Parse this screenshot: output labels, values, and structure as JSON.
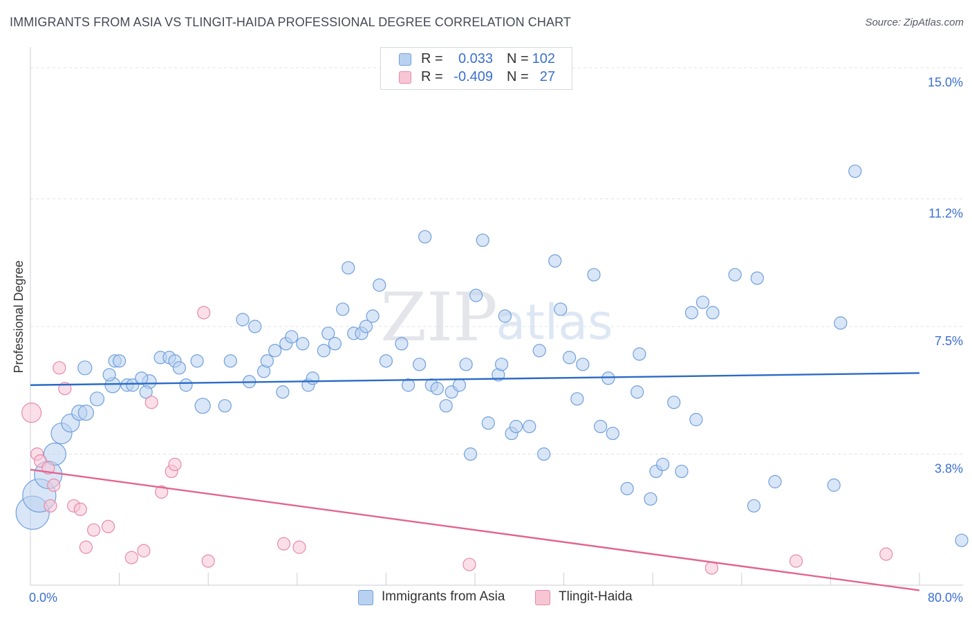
{
  "title": "IMMIGRANTS FROM ASIA VS TLINGIT-HAIDA PROFESSIONAL DEGREE CORRELATION CHART",
  "source": "Source: ZipAtlas.com",
  "watermark": {
    "zip": "ZIP",
    "atlas": "atlas"
  },
  "legend_top": [
    {
      "r_label": "R =",
      "r_value": "0.033",
      "n_label": "N =",
      "n_value": "102"
    },
    {
      "r_label": "R =",
      "r_value": "-0.409",
      "n_label": "N =",
      "n_value": "27"
    }
  ],
  "colors": {
    "blue_fill": "#b9d1f0",
    "blue_stroke": "#6f9fda",
    "blue_line": "#2a6ac8",
    "pink_fill": "#f8c5d5",
    "pink_stroke": "#e58aa8",
    "pink_line": "#e2648f",
    "axis_text": "#3a6fcf",
    "grid": "#dde1e6"
  },
  "chart_data": {
    "type": "scatter",
    "title": "IMMIGRANTS FROM ASIA VS TLINGIT-HAIDA PROFESSIONAL DEGREE CORRELATION CHART",
    "xlabel": "",
    "ylabel": "Professional Degree",
    "xlim": [
      0,
      80
    ],
    "ylim": [
      0,
      15.4
    ],
    "x_tick_labels": [
      {
        "value": 0,
        "label": "0.0%"
      },
      {
        "value": 80,
        "label": "80.0%"
      }
    ],
    "y_tick_labels": [
      {
        "value": 3.8,
        "label": "3.8%"
      },
      {
        "value": 7.5,
        "label": "7.5%"
      },
      {
        "value": 11.2,
        "label": "11.2%"
      },
      {
        "value": 15.0,
        "label": "15.0%"
      }
    ],
    "series": [
      {
        "name": "Immigrants from Asia",
        "color": "#6f9fda",
        "trend": {
          "x0": 0,
          "y0": 5.8,
          "x1": 80,
          "y1": 6.15
        },
        "points": [
          [
            0.2,
            2.1,
            24
          ],
          [
            0.8,
            2.6,
            24
          ],
          [
            1.6,
            3.2,
            20
          ],
          [
            2.2,
            3.8,
            16
          ],
          [
            2.8,
            4.4,
            15
          ],
          [
            3.6,
            4.7,
            13
          ],
          [
            4.4,
            5.0,
            11
          ],
          [
            5.0,
            5.0,
            11
          ],
          [
            7.4,
            5.8,
            11
          ],
          [
            10.7,
            5.9,
            10
          ],
          [
            15.5,
            5.2,
            11
          ],
          [
            4.9,
            6.3,
            10
          ],
          [
            6.0,
            5.4,
            10
          ],
          [
            7.1,
            6.1,
            9
          ],
          [
            7.6,
            6.5,
            9
          ],
          [
            8.0,
            6.5,
            9
          ],
          [
            8.7,
            5.8,
            9
          ],
          [
            9.2,
            5.8,
            9
          ],
          [
            10.4,
            5.6,
            9
          ],
          [
            10.0,
            6.0,
            9
          ],
          [
            11.7,
            6.6,
            9
          ],
          [
            12.5,
            6.6,
            9
          ],
          [
            13.0,
            6.5,
            9
          ],
          [
            13.4,
            6.3,
            9
          ],
          [
            14.0,
            5.8,
            9
          ],
          [
            15.0,
            6.5,
            9
          ],
          [
            17.5,
            5.2,
            9
          ],
          [
            18.0,
            6.5,
            9
          ],
          [
            19.1,
            7.7,
            9
          ],
          [
            19.7,
            5.9,
            9
          ],
          [
            20.2,
            7.5,
            9
          ],
          [
            21.0,
            6.2,
            9
          ],
          [
            21.3,
            6.5,
            9
          ],
          [
            22.0,
            6.8,
            9
          ],
          [
            22.7,
            5.6,
            9
          ],
          [
            23.0,
            7.0,
            9
          ],
          [
            23.5,
            7.2,
            9
          ],
          [
            24.5,
            7.0,
            9
          ],
          [
            25.0,
            5.8,
            9
          ],
          [
            25.4,
            6.0,
            9
          ],
          [
            26.4,
            6.8,
            9
          ],
          [
            26.8,
            7.3,
            9
          ],
          [
            27.4,
            7.0,
            9
          ],
          [
            28.1,
            8.0,
            9
          ],
          [
            28.6,
            9.2,
            9
          ],
          [
            29.1,
            7.3,
            9
          ],
          [
            29.8,
            7.3,
            9
          ],
          [
            30.2,
            7.5,
            9
          ],
          [
            30.8,
            7.8,
            9
          ],
          [
            31.4,
            8.7,
            9
          ],
          [
            32.0,
            6.5,
            9
          ],
          [
            33.4,
            7.0,
            9
          ],
          [
            34.0,
            5.8,
            9
          ],
          [
            35.0,
            6.4,
            9
          ],
          [
            35.5,
            10.1,
            9
          ],
          [
            36.1,
            5.8,
            9
          ],
          [
            36.6,
            5.7,
            9
          ],
          [
            37.4,
            5.2,
            9
          ],
          [
            37.9,
            5.6,
            9
          ],
          [
            38.6,
            5.8,
            9
          ],
          [
            39.2,
            6.4,
            9
          ],
          [
            39.6,
            3.8,
            9
          ],
          [
            40.1,
            8.4,
            9
          ],
          [
            40.7,
            10.0,
            9
          ],
          [
            41.2,
            4.7,
            9
          ],
          [
            42.1,
            6.1,
            9
          ],
          [
            42.4,
            6.4,
            9
          ],
          [
            42.7,
            7.8,
            9
          ],
          [
            43.3,
            4.4,
            9
          ],
          [
            43.7,
            4.6,
            9
          ],
          [
            44.9,
            4.6,
            9
          ],
          [
            45.8,
            6.8,
            9
          ],
          [
            46.2,
            3.8,
            9
          ],
          [
            47.2,
            9.4,
            9
          ],
          [
            47.7,
            8.0,
            9
          ],
          [
            48.5,
            6.6,
            9
          ],
          [
            49.2,
            5.4,
            9
          ],
          [
            49.7,
            6.4,
            9
          ],
          [
            50.7,
            9.0,
            9
          ],
          [
            51.3,
            4.6,
            9
          ],
          [
            52.0,
            6.0,
            9
          ],
          [
            52.4,
            4.4,
            9
          ],
          [
            53.7,
            2.8,
            9
          ],
          [
            54.6,
            5.6,
            9
          ],
          [
            54.8,
            6.7,
            9
          ],
          [
            55.8,
            2.5,
            9
          ],
          [
            56.3,
            3.3,
            9
          ],
          [
            56.9,
            3.5,
            9
          ],
          [
            57.9,
            5.3,
            9
          ],
          [
            58.6,
            3.3,
            9
          ],
          [
            59.5,
            7.9,
            9
          ],
          [
            59.9,
            4.8,
            9
          ],
          [
            60.5,
            8.2,
            9
          ],
          [
            61.4,
            7.9,
            9
          ],
          [
            63.4,
            9.0,
            9
          ],
          [
            65.1,
            2.3,
            9
          ],
          [
            65.4,
            8.9,
            9
          ],
          [
            67.0,
            3.0,
            9
          ],
          [
            72.3,
            2.9,
            9
          ],
          [
            72.9,
            7.6,
            9
          ],
          [
            74.2,
            12.0,
            9
          ],
          [
            83.8,
            1.3,
            9
          ]
        ]
      },
      {
        "name": "Tlingit-Haida",
        "color": "#e58aa8",
        "trend": {
          "x0": 0,
          "y0": 3.35,
          "x1": 80,
          "y1": -0.15
        },
        "points": [
          [
            0.1,
            5.0,
            14
          ],
          [
            0.6,
            3.8,
            9
          ],
          [
            0.9,
            3.6,
            9
          ],
          [
            1.6,
            3.4,
            9
          ],
          [
            1.8,
            2.3,
            9
          ],
          [
            2.1,
            2.9,
            9
          ],
          [
            2.6,
            6.3,
            9
          ],
          [
            3.1,
            5.7,
            9
          ],
          [
            3.9,
            2.3,
            9
          ],
          [
            4.5,
            2.2,
            9
          ],
          [
            5.0,
            1.1,
            9
          ],
          [
            5.7,
            1.6,
            9
          ],
          [
            7.0,
            1.7,
            9
          ],
          [
            9.1,
            0.8,
            9
          ],
          [
            10.2,
            1.0,
            9
          ],
          [
            10.9,
            5.3,
            9
          ],
          [
            11.8,
            2.7,
            9
          ],
          [
            12.7,
            3.3,
            9
          ],
          [
            13.0,
            3.5,
            9
          ],
          [
            15.6,
            7.9,
            9
          ],
          [
            16.0,
            0.7,
            9
          ],
          [
            22.8,
            1.2,
            9
          ],
          [
            24.2,
            1.1,
            9
          ],
          [
            39.5,
            0.6,
            9
          ],
          [
            61.3,
            0.5,
            9
          ],
          [
            68.9,
            0.7,
            9
          ],
          [
            77.0,
            0.9,
            9
          ]
        ]
      }
    ]
  },
  "legend_bottom": [
    {
      "label": "Immigrants from Asia"
    },
    {
      "label": "Tlingit-Haida"
    }
  ]
}
